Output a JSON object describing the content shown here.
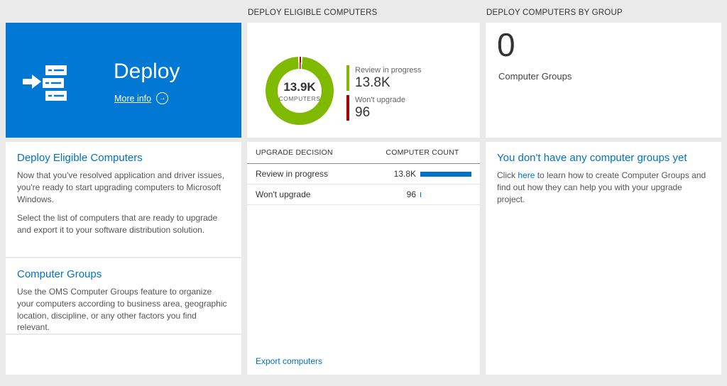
{
  "headers": {
    "middle": "DEPLOY ELIGIBLE COMPUTERS",
    "right": "DEPLOY COMPUTERS BY GROUP"
  },
  "deploy_tile": {
    "title": "Deploy",
    "more_info": "More info",
    "bg": "#0078d4"
  },
  "left_card": {
    "section1": {
      "heading": "Deploy Eligible Computers",
      "para1": "Now that you've resolved application and driver issues, you're ready to start upgrading computers to Microsoft Windows.",
      "para2": "Select the list of computers that are ready to upgrade and export it to your software distribution solution."
    },
    "section2": {
      "heading": "Computer Groups",
      "para1": "Use the OMS Computer Groups feature to organize your computers according to business area, geographic location, discipline, or any other factors you find relevant."
    }
  },
  "donut_card": {
    "center_value": "13.9K",
    "center_label": "COMPUTERS",
    "legend": [
      {
        "label": "Review in progress",
        "value": "13.8K",
        "color": "#7fba00"
      },
      {
        "label": "Won't upgrade",
        "value": "96",
        "color": "#a80000"
      }
    ]
  },
  "table_card": {
    "columns": [
      "UPGRADE DECISION",
      "COMPUTER COUNT"
    ],
    "bar_color": "#0072c6",
    "rows": [
      {
        "label": "Review in progress",
        "value": "13.8K",
        "bar_pct": 100
      },
      {
        "label": "Won't upgrade",
        "value": "96",
        "bar_pct": 2
      }
    ],
    "export_link": "Export computers"
  },
  "groups_card": {
    "count": "0",
    "label": "Computer Groups"
  },
  "groups_info_card": {
    "heading": "You don't have any computer groups yet",
    "text_before": "Click ",
    "link": "here",
    "text_after": " to learn how to create Computer Groups and find out how they can help you with your upgrade project."
  }
}
